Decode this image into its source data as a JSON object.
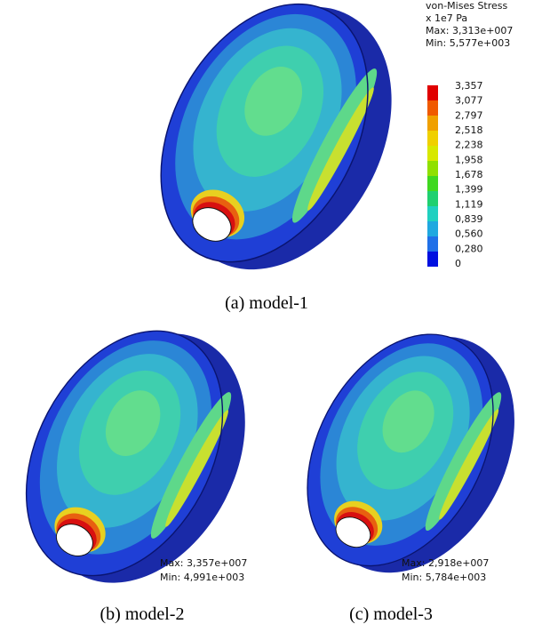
{
  "legend": {
    "title": "von-Mises  Stress",
    "unit": "x 1e7 Pa",
    "max": "Max: 3,313e+007",
    "min": "Min: 5,577e+003",
    "levels": [
      "3,357",
      "3,077",
      "2,797",
      "2,518",
      "2,238",
      "1,958",
      "1,678",
      "1,399",
      "1,119",
      "0,839",
      "0,560",
      "0,280",
      "0"
    ]
  },
  "panels": [
    {
      "caption": "(a)  model-1"
    },
    {
      "caption": "(b)  model-2",
      "max": "Max: 3,357e+007",
      "min": "Min: 4,991e+003"
    },
    {
      "caption": "(c)  model-3",
      "max": "Max: 2,918e+007",
      "min": "Min: 5,784e+003"
    }
  ]
}
